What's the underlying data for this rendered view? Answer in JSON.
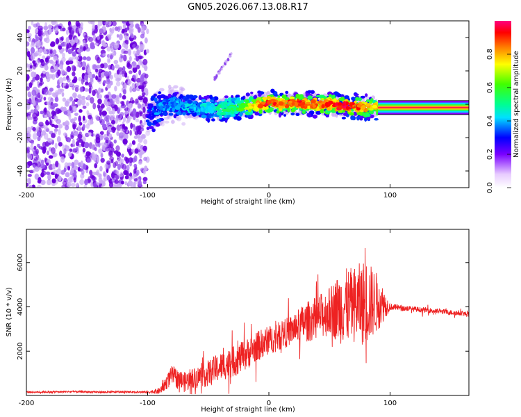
{
  "title": "GN05.2026.067.13.08.R17",
  "colors": {
    "snr_line": "#ee2222",
    "center_line": "#ff2244",
    "speckle_dark": "#6a00dd",
    "speckle_light": "#c9a8f5"
  },
  "chart_data": [
    {
      "type": "heatmap",
      "title": "GN05.2026.067.13.08.R17",
      "xlabel": "Height of straight line (km)",
      "ylabel": "Frequency (Hz)",
      "xlim": [
        -200,
        165
      ],
      "ylim": [
        -50,
        50
      ],
      "xticks": [
        -200,
        -100,
        0,
        100
      ],
      "xtick_labels": [
        "-200",
        "-100",
        "0",
        "100"
      ],
      "yticks": [
        -40,
        -20,
        0,
        20,
        40
      ],
      "ytick_labels": [
        "-40",
        "-20",
        "0",
        "20",
        "40"
      ],
      "noise_region_x": [
        -200,
        -100
      ],
      "signal_trace": {
        "x": [
          -100,
          -90,
          -80,
          -70,
          -60,
          -50,
          -40,
          -30,
          -20,
          -10,
          0,
          10,
          20,
          30,
          40,
          50,
          60,
          70,
          80,
          90
        ],
        "frequency": [
          -8,
          -2,
          0,
          -1,
          -2,
          -3,
          -3,
          -2,
          -1,
          0,
          1,
          0,
          1,
          0,
          0,
          0,
          -1,
          -1,
          -2,
          -2
        ],
        "peak_amplitude": [
          0.25,
          0.3,
          0.32,
          0.35,
          0.35,
          0.4,
          0.45,
          0.5,
          0.6,
          0.8,
          0.95,
          0.85,
          0.9,
          0.9,
          0.85,
          0.9,
          0.95,
          0.9,
          0.85,
          0.75
        ]
      },
      "fit_line": {
        "x": [
          90,
          165
        ],
        "frequency": [
          -2,
          -2
        ]
      },
      "streak": {
        "x": [
          -45,
          -30
        ],
        "frequency": [
          15,
          31
        ]
      },
      "colorbar": {
        "label": "Normalized spectral amplitude",
        "range": [
          0,
          1
        ],
        "ticks": [
          0.0,
          0.2,
          0.4,
          0.6,
          0.8
        ],
        "tick_labels": [
          "0.0",
          "0.2",
          "0.4",
          "0.6",
          "0.8"
        ]
      }
    },
    {
      "type": "line",
      "xlabel": "Height of straight line (km)",
      "ylabel": "SNR (10 * v/v)",
      "xlim": [
        -200,
        165
      ],
      "ylim": [
        0,
        7500
      ],
      "xticks": [
        -200,
        -100,
        0,
        100
      ],
      "xtick_labels": [
        "-200",
        "-100",
        "0",
        "100"
      ],
      "yticks": [
        2000,
        4000,
        6000
      ],
      "ytick_labels": [
        "2000",
        "4000",
        "6000"
      ],
      "series": [
        {
          "name": "SNR",
          "x": [
            -200,
            -180,
            -160,
            -140,
            -120,
            -100,
            -90,
            -80,
            -70,
            -60,
            -50,
            -40,
            -30,
            -20,
            -10,
            0,
            10,
            20,
            30,
            40,
            50,
            60,
            70,
            80,
            90,
            100,
            110,
            120,
            130,
            140,
            150,
            160,
            165
          ],
          "values": [
            150,
            160,
            170,
            150,
            160,
            150,
            200,
            900,
            600,
            800,
            1000,
            1300,
            1500,
            1800,
            2200,
            2500,
            2700,
            3000,
            3300,
            3500,
            3800,
            4000,
            4100,
            4200,
            4200,
            4000,
            3950,
            3900,
            3850,
            3800,
            3750,
            3700,
            3650
          ],
          "swing": [
            40,
            40,
            40,
            40,
            40,
            40,
            150,
            450,
            450,
            500,
            600,
            650,
            700,
            700,
            700,
            650,
            650,
            700,
            900,
            1000,
            1100,
            1700,
            1700,
            2000,
            1300,
            150,
            120,
            120,
            120,
            120,
            120,
            120,
            120
          ]
        }
      ]
    }
  ]
}
